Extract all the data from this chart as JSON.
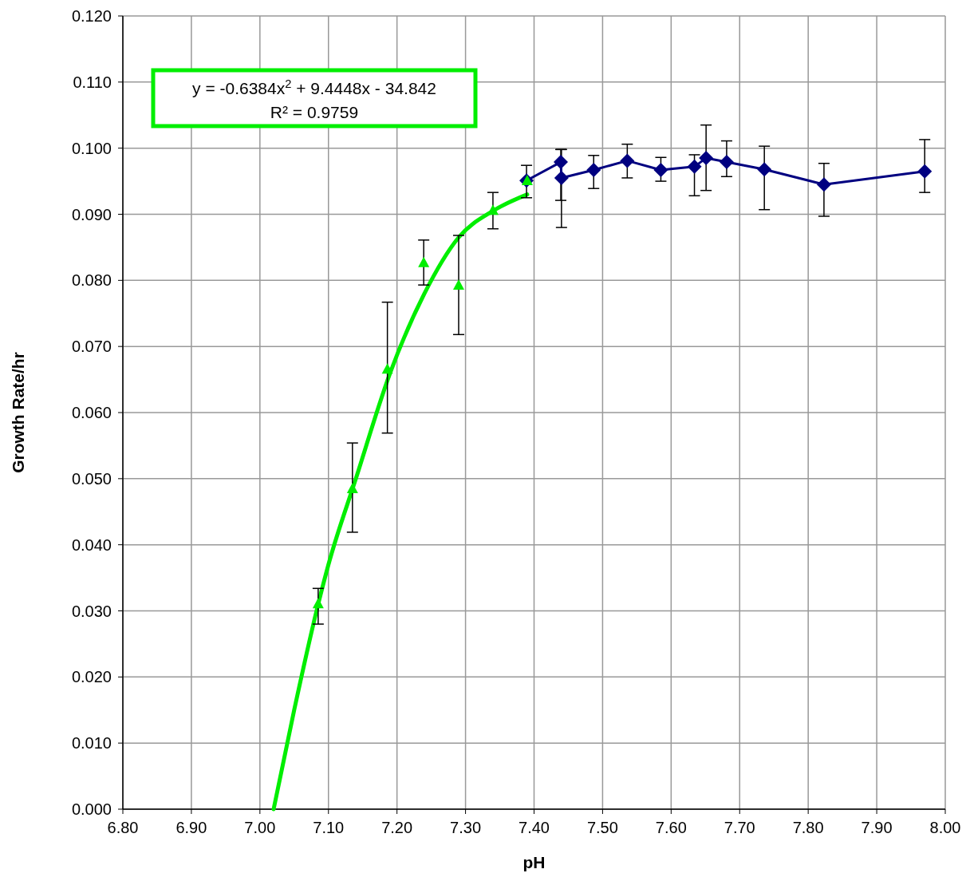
{
  "chart_data": {
    "type": "scatter",
    "xlabel": "pH",
    "ylabel": "Growth Rate/hr",
    "xlim": [
      6.8,
      8.0
    ],
    "ylim": [
      0,
      0.12
    ],
    "xticks": [
      {
        "value": 6.8,
        "label": "6.80"
      },
      {
        "value": 6.9,
        "label": "6.90"
      },
      {
        "value": 7.0,
        "label": "7.00"
      },
      {
        "value": 7.1,
        "label": "7.10"
      },
      {
        "value": 7.2,
        "label": "7.20"
      },
      {
        "value": 7.3,
        "label": "7.30"
      },
      {
        "value": 7.4,
        "label": "7.40"
      },
      {
        "value": 7.5,
        "label": "7.50"
      },
      {
        "value": 7.6,
        "label": "7.60"
      },
      {
        "value": 7.7,
        "label": "7.70"
      },
      {
        "value": 7.8,
        "label": "7.80"
      },
      {
        "value": 7.9,
        "label": "7.90"
      },
      {
        "value": 8.0,
        "label": "8.00"
      }
    ],
    "yticks": [
      {
        "value": 0,
        "label": "0.000"
      },
      {
        "value": 0.01,
        "label": "0.010"
      },
      {
        "value": 0.02,
        "label": "0.020"
      },
      {
        "value": 0.03,
        "label": "0.030"
      },
      {
        "value": 0.04,
        "label": "0.040"
      },
      {
        "value": 0.05,
        "label": "0.050"
      },
      {
        "value": 0.06,
        "label": "0.060"
      },
      {
        "value": 0.07,
        "label": "0.070"
      },
      {
        "value": 0.08,
        "label": "0.080"
      },
      {
        "value": 0.09,
        "label": "0.090"
      },
      {
        "value": 0.1,
        "label": "0.100"
      },
      {
        "value": 0.11,
        "label": "0.110"
      },
      {
        "value": 0.12,
        "label": "0.120"
      }
    ],
    "grid": true,
    "annotations": [
      "y = -0.6384x$^{2}$ + 9.4448x - 34.842",
      "R² = 0.9759"
    ],
    "series": [
      {
        "type": "line",
        "color": "#00ee00",
        "marker": "none",
        "x": [
          7.02,
          7.05,
          7.085,
          7.1,
          7.14,
          7.19,
          7.24,
          7.29,
          7.34,
          7.39
        ],
        "values": [
          0,
          0.015,
          0.031,
          0.037,
          0.05,
          0.066,
          0.078,
          0.0865,
          0.0905,
          0.093
        ]
      },
      {
        "type": "line",
        "color": "#000080",
        "marker": "diamond",
        "x": [
          7.389,
          7.439,
          7.44,
          7.487,
          7.536,
          7.585,
          7.634,
          7.651,
          7.681,
          7.736,
          7.823,
          7.97
        ],
        "values": [
          0.0951,
          0.0979,
          0.0955,
          0.0967,
          0.0981,
          0.0967,
          0.0972,
          0.0985,
          0.0979,
          0.0968,
          0.0945,
          0.0965
        ],
        "errors": [
          [
            0.0925,
            0.0974
          ],
          [
            0.0921,
            0.0998
          ],
          [
            0.088,
            0.0998
          ],
          [
            0.0939,
            0.0989
          ],
          [
            0.0955,
            0.1006
          ],
          [
            0.095,
            0.0986
          ],
          [
            0.0928,
            0.099
          ],
          [
            0.0936,
            0.1035
          ],
          [
            0.0957,
            0.1011
          ],
          [
            0.0907,
            0.1003
          ],
          [
            0.0897,
            0.0977
          ],
          [
            0.0933,
            0.1013
          ]
        ]
      },
      {
        "color": "#00ee00",
        "marker": "triangle",
        "x": [
          7.085,
          7.135,
          7.186,
          7.239,
          7.29,
          7.34,
          7.39
        ],
        "values": [
          0.031,
          0.0484,
          0.0665,
          0.0826,
          0.0792,
          0.0905,
          0.095
        ],
        "errors": [
          [
            0.028,
            0.0334
          ],
          [
            0.0419,
            0.0554
          ],
          [
            0.0569,
            0.0767
          ],
          [
            0.0793,
            0.0861
          ],
          [
            0.0718,
            0.0868
          ],
          [
            0.0878,
            0.0933
          ],
          null
        ]
      }
    ]
  }
}
